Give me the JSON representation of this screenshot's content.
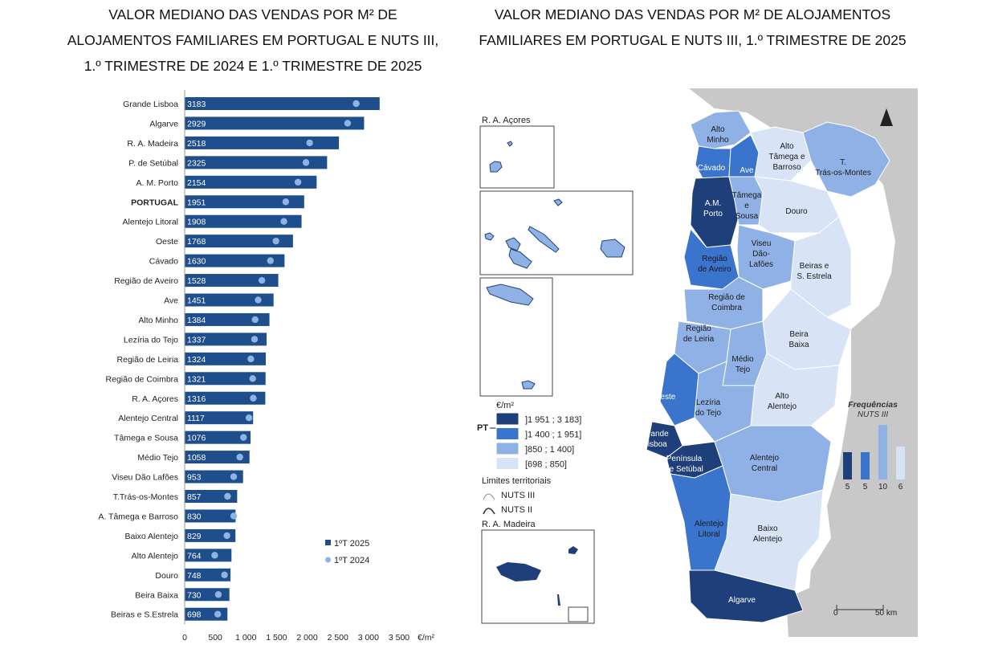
{
  "left_title": {
    "line1": "VALOR MEDIANO DAS VENDAS POR M² DE",
    "line2": "ALOJAMENTOS FAMILIARES EM PORTUGAL E NUTS III,",
    "line3": "1.º TRIMESTRE DE 2024 E 1.º TRIMESTRE DE 2025"
  },
  "right_title": {
    "line1": "VALOR MEDIANO DAS VENDAS POR M² DE ALOJAMENTOS",
    "line2": "FAMILIARES EM PORTUGAL E NUTS III, 1.º TRIMESTRE DE 2025"
  },
  "chart_data": [
    {
      "type": "bar",
      "orientation": "horizontal",
      "categories": [
        "Grande Lisboa",
        "Algarve",
        "R. A. Madeira",
        "P. de Setúbal",
        "A. M. Porto",
        "PORTUGAL",
        "Alentejo Litoral",
        "Oeste",
        "Cávado",
        "Região de Aveiro",
        "Ave",
        "Alto Minho",
        "Lezíria do Tejo",
        "Região de Leiria",
        "Região de Coimbra",
        "R. A. Açores",
        "Alentejo Central",
        "Tâmega e Sousa",
        "Médio Tejo",
        "Viseu Dão Lafões",
        "T.Trás-os-Montes",
        "A. Tâmega e Barroso",
        "Baixo Alentejo",
        "Alto Alentejo",
        "Douro",
        "Beira Baixa",
        "Beiras e S.Estrela"
      ],
      "series": [
        {
          "name": "1ºT 2025",
          "type": "bar",
          "values": [
            3183,
            2929,
            2518,
            2325,
            2154,
            1951,
            1908,
            1768,
            1630,
            1528,
            1451,
            1384,
            1337,
            1324,
            1321,
            1316,
            1117,
            1076,
            1058,
            953,
            857,
            830,
            829,
            764,
            748,
            730,
            698
          ]
        },
        {
          "name": "1ºT 2024",
          "type": "point",
          "values": [
            2800,
            2660,
            2040,
            1980,
            1850,
            1650,
            1620,
            1490,
            1400,
            1260,
            1200,
            1150,
            1140,
            1080,
            1110,
            1120,
            1050,
            960,
            900,
            800,
            700,
            800,
            690,
            490,
            650,
            550,
            540
          ]
        }
      ],
      "highlight_category": "PORTUGAL",
      "xlim": [
        0,
        3500
      ],
      "x_ticks": [
        "0",
        "500",
        "1 000",
        "1 500",
        "2 000",
        "2 500",
        "3 000",
        "3 500"
      ],
      "x_unit": "€/m²",
      "legend_position": "bottom-right",
      "colors": {
        "bar": "#1f4e8c",
        "point": "#8fb4e3"
      }
    },
    {
      "type": "bar",
      "title": "Frequências",
      "subtitle": "NUTS III",
      "categories": [
        "]1 951 ; 3 183]",
        "]1 400 ; 1 951]",
        "]850 ; 1 400]",
        "[698 ; 850]"
      ],
      "values": [
        5,
        5,
        10,
        6
      ],
      "value_labels": [
        "5",
        "5",
        "10",
        "6"
      ],
      "colors": [
        "#1f3f7a",
        "#3a74cc",
        "#8fb1e6",
        "#d8e4f6"
      ]
    }
  ],
  "map": {
    "insets": {
      "azores_label": "R. A. Açores",
      "madeira_label": "R. A. Madeira"
    },
    "legend": {
      "unit_label": "€/m²",
      "pt_label": "PT",
      "classes": [
        {
          "label": "]1 951 ; 3 183]",
          "color": "#1f3f7a"
        },
        {
          "label": "]1 400 ; 1 951]",
          "color": "#3a74cc"
        },
        {
          "label": "]850 ; 1 400]",
          "color": "#8fb1e6"
        },
        {
          "label": "[698 ; 850]",
          "color": "#d8e4f6"
        }
      ],
      "limits_title": "Limites territoriais",
      "nuts3_label": "NUTS III",
      "nuts2_label": "NUTS II"
    },
    "region_labels": {
      "alto_minho": [
        "Alto",
        "Minho"
      ],
      "cavado": [
        "Cávado"
      ],
      "ave": [
        "Ave"
      ],
      "alto_tamega": [
        "Alto",
        "Tâmega e",
        "Barroso"
      ],
      "tras_os_montes": [
        "T.",
        "Trás-os-Montes"
      ],
      "tamega_sousa": [
        "Tâmega",
        "e",
        "Sousa"
      ],
      "am_porto": [
        "A.M.",
        "Porto"
      ],
      "douro": [
        "Douro"
      ],
      "viseu": [
        "Viseu",
        "Dão-",
        "Lafões"
      ],
      "aveiro": [
        "Região",
        "de Aveiro"
      ],
      "beiras_estrela": [
        "Beiras e",
        "S. Estrela"
      ],
      "coimbra": [
        "Região de",
        "Coimbra"
      ],
      "leiria": [
        "Região",
        "de Leiria"
      ],
      "beira_baixa": [
        "Beira",
        "Baixa"
      ],
      "medio_tejo": [
        "Médio",
        "Tejo"
      ],
      "oeste": [
        "Oeste"
      ],
      "leziria": [
        "Lezíria",
        "do Tejo"
      ],
      "alto_alentejo": [
        "Alto",
        "Alentejo"
      ],
      "grande_lisboa": [
        "Grande",
        "Lisboa"
      ],
      "setubal": [
        "Península",
        "de Setúbal"
      ],
      "alentejo_central": [
        "Alentejo",
        "Central"
      ],
      "alentejo_litoral": [
        "Alentejo",
        "Litoral"
      ],
      "baixo_alentejo": [
        "Baixo",
        "Alentejo"
      ],
      "algarve": [
        "Algarve"
      ]
    },
    "scale": {
      "zero": "0",
      "distance": "50 km"
    },
    "colors": {
      "land": "#c8c8c8",
      "sea": "#ffffff",
      "border": "#ffffff"
    }
  }
}
